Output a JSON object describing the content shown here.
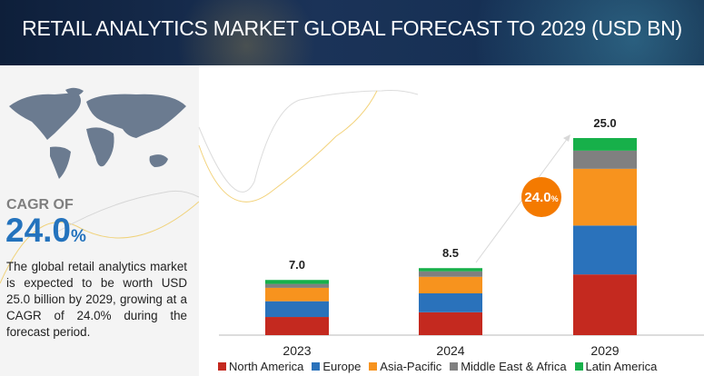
{
  "title": "RETAIL ANALYTICS MARKET GLOBAL FORECAST TO 2029 (USD BN)",
  "side": {
    "cagr_label": "CAGR OF",
    "cagr_value": "24.0",
    "cagr_unit": "%",
    "description": "The global retail analytics market is expected to be worth USD 25.0 billion by 2029, growing at a CAGR of 24.0% during the forecast period."
  },
  "chart_data": {
    "type": "bar",
    "stacked": true,
    "title": "RETAIL ANALYTICS MARKET GLOBAL FORECAST TO 2029 (USD BN)",
    "categories": [
      "2023",
      "2024",
      "2029"
    ],
    "totals": [
      "7.0",
      "8.5",
      "25.0"
    ],
    "series": [
      {
        "name": "North America",
        "color": "#c4291f",
        "values": [
          2.3,
          2.9,
          7.7
        ]
      },
      {
        "name": "Europe",
        "color": "#2a72bb",
        "values": [
          2.0,
          2.4,
          6.2
        ]
      },
      {
        "name": "Asia-Pacific",
        "color": "#f7931e",
        "values": [
          1.7,
          2.1,
          7.2
        ]
      },
      {
        "name": "Middle East & Africa",
        "color": "#808080",
        "values": [
          0.5,
          0.7,
          2.3
        ]
      },
      {
        "name": "Latin America",
        "color": "#17b04a",
        "values": [
          0.5,
          0.4,
          1.6
        ]
      }
    ],
    "annotation": {
      "cagr": "24.0",
      "unit": "%",
      "color": "#f47a00"
    },
    "ylim": [
      0,
      25
    ],
    "grid": false,
    "legend": "bottom"
  }
}
